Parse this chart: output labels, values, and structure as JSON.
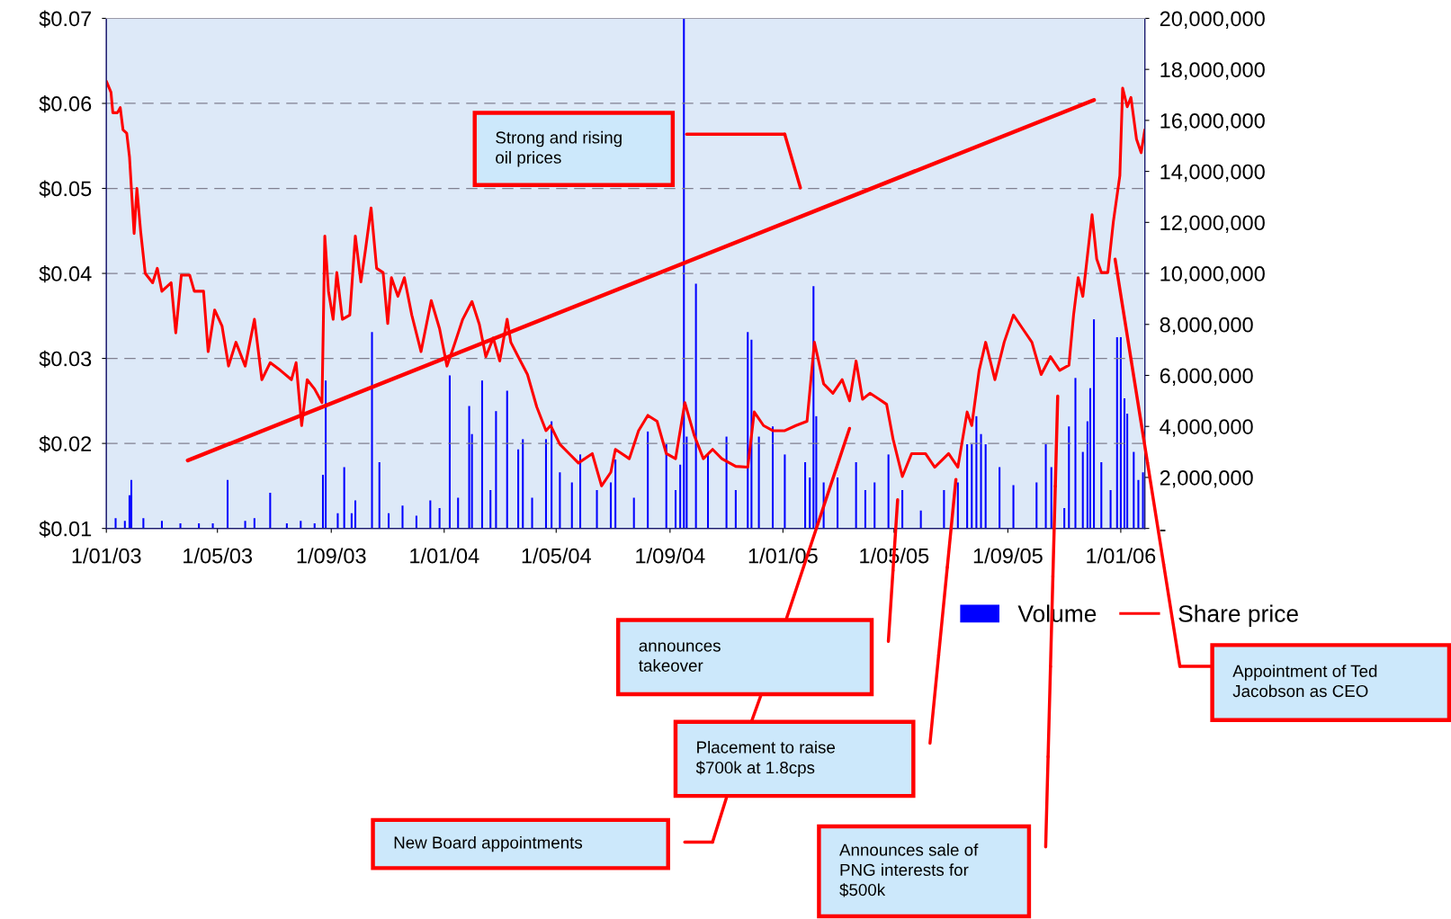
{
  "chart_data": {
    "type": "line",
    "series": [
      {
        "name": "Volume",
        "type": "bar",
        "axis": "y2",
        "color": "#0000ff",
        "x": [
          "2003-01-11",
          "2003-01-21",
          "2003-01-26",
          "2003-01-28",
          "2003-02-10",
          "2003-03-02",
          "2003-03-22",
          "2003-04-11",
          "2003-04-26",
          "2003-05-12",
          "2003-05-31",
          "2003-06-10",
          "2003-06-27",
          "2003-07-15",
          "2003-07-30",
          "2003-08-14",
          "2003-08-23",
          "2003-08-26",
          "2003-09-08",
          "2003-09-15",
          "2003-09-23",
          "2003-09-27",
          "2003-10-15",
          "2003-10-23",
          "2003-11-02",
          "2003-11-17",
          "2003-12-02",
          "2003-12-17",
          "2003-12-27",
          "2004-01-07",
          "2004-01-16",
          "2004-01-28",
          "2004-01-31",
          "2004-02-11",
          "2004-02-20",
          "2004-02-26",
          "2004-03-09",
          "2004-03-21",
          "2004-03-26",
          "2004-04-05",
          "2004-04-20",
          "2004-04-26",
          "2004-05-05",
          "2004-05-18",
          "2004-05-27",
          "2004-06-14",
          "2004-06-29",
          "2004-07-04",
          "2004-07-24",
          "2004-08-08",
          "2004-08-28",
          "2004-09-07",
          "2004-09-12",
          "2004-09-16",
          "2004-09-19",
          "2004-09-29",
          "2004-10-12",
          "2004-11-01",
          "2004-11-11",
          "2004-11-24",
          "2004-11-28",
          "2004-12-06",
          "2004-12-21",
          "2005-01-03",
          "2005-01-25",
          "2005-01-30",
          "2005-02-03",
          "2005-02-06",
          "2005-02-14",
          "2005-03-01",
          "2005-03-21",
          "2005-03-31",
          "2005-04-10",
          "2005-04-25",
          "2005-05-10",
          "2005-05-30",
          "2005-06-24",
          "2005-07-09",
          "2005-07-19",
          "2005-07-24",
          "2005-07-29",
          "2005-08-03",
          "2005-08-08",
          "2005-08-23",
          "2005-09-07",
          "2005-10-02",
          "2005-10-12",
          "2005-10-18",
          "2005-11-01",
          "2005-11-06",
          "2005-11-13",
          "2005-11-21",
          "2005-11-26",
          "2005-11-29",
          "2005-12-03",
          "2005-12-11",
          "2005-12-21",
          "2005-12-28",
          "2006-01-01",
          "2006-01-05",
          "2006-01-08",
          "2006-01-15",
          "2006-01-20",
          "2006-01-25"
        ],
        "values": [
          400000,
          300000,
          1300000,
          1900000,
          400000,
          300000,
          200000,
          200000,
          200000,
          1900000,
          300000,
          400000,
          1400000,
          200000,
          300000,
          200000,
          2100000,
          5800000,
          600000,
          2400000,
          600000,
          1100000,
          7700000,
          2600000,
          600000,
          900000,
          500000,
          1100000,
          800000,
          6000000,
          1200000,
          4800000,
          3700000,
          5800000,
          1500000,
          4600000,
          5400000,
          3100000,
          3500000,
          1200000,
          3500000,
          4200000,
          2200000,
          1800000,
          2900000,
          1500000,
          1800000,
          2700000,
          1200000,
          3800000,
          3300000,
          1500000,
          2500000,
          20000000,
          3600000,
          9600000,
          2900000,
          3600000,
          1500000,
          7700000,
          7400000,
          3600000,
          4000000,
          2900000,
          2600000,
          2000000,
          9500000,
          4400000,
          1800000,
          2000000,
          2600000,
          1500000,
          1800000,
          2900000,
          1500000,
          700000,
          1500000,
          1800000,
          3300000,
          3300000,
          4400000,
          3700000,
          3300000,
          2400000,
          1700000,
          1800000,
          3300000,
          2400000,
          800000,
          4000000,
          5900000,
          3000000,
          4200000,
          5500000,
          8200000,
          2600000,
          1500000,
          7500000,
          7500000,
          5100000,
          4500000,
          3000000,
          1900000,
          2200000
        ]
      },
      {
        "name": "Share price",
        "type": "line",
        "color": "#ff0000",
        "x": [
          "2003-01-01",
          "2003-01-06",
          "2003-01-08",
          "2003-01-13",
          "2003-01-16",
          "2003-01-19",
          "2003-01-23",
          "2003-01-26",
          "2003-01-31",
          "2003-02-03",
          "2003-02-07",
          "2003-02-12",
          "2003-02-20",
          "2003-02-25",
          "2003-03-02",
          "2003-03-12",
          "2003-03-17",
          "2003-03-23",
          "2003-04-01",
          "2003-04-06",
          "2003-04-16",
          "2003-04-21",
          "2003-04-28",
          "2003-05-06",
          "2003-05-13",
          "2003-05-21",
          "2003-05-31",
          "2003-06-10",
          "2003-06-18",
          "2003-06-27",
          "2003-07-08",
          "2003-07-20",
          "2003-07-25",
          "2003-07-31",
          "2003-08-06",
          "2003-08-14",
          "2003-08-22",
          "2003-08-25",
          "2003-08-29",
          "2003-09-03",
          "2003-09-07",
          "2003-09-13",
          "2003-09-21",
          "2003-09-27",
          "2003-10-03",
          "2003-10-08",
          "2003-10-14",
          "2003-10-20",
          "2003-10-27",
          "2003-11-01",
          "2003-11-05",
          "2003-11-12",
          "2003-11-19",
          "2003-11-27",
          "2003-12-07",
          "2003-12-18",
          "2003-12-27",
          "2004-01-04",
          "2004-01-11",
          "2004-01-21",
          "2004-01-31",
          "2004-02-08",
          "2004-02-15",
          "2004-02-23",
          "2004-03-01",
          "2004-03-09",
          "2004-03-13",
          "2004-03-21",
          "2004-03-31",
          "2004-04-10",
          "2004-04-20",
          "2004-04-25",
          "2004-05-05",
          "2004-05-15",
          "2004-05-25",
          "2004-06-09",
          "2004-06-19",
          "2004-06-29",
          "2004-07-04",
          "2004-07-19",
          "2004-07-29",
          "2004-08-08",
          "2004-08-18",
          "2004-08-28",
          "2004-09-07",
          "2004-09-17",
          "2004-09-27",
          "2004-10-07",
          "2004-10-17",
          "2004-10-27",
          "2004-11-11",
          "2004-11-24",
          "2004-12-01",
          "2004-12-11",
          "2004-12-21",
          "2005-01-03",
          "2005-01-15",
          "2005-01-27",
          "2005-02-04",
          "2005-02-14",
          "2005-02-24",
          "2005-03-06",
          "2005-03-14",
          "2005-03-21",
          "2005-03-28",
          "2005-04-05",
          "2005-04-15",
          "2005-04-23",
          "2005-04-30",
          "2005-05-10",
          "2005-05-20",
          "2005-06-04",
          "2005-06-14",
          "2005-06-29",
          "2005-07-09",
          "2005-07-19",
          "2005-07-24",
          "2005-08-01",
          "2005-08-08",
          "2005-08-18",
          "2005-08-28",
          "2005-09-07",
          "2005-09-17",
          "2005-09-27",
          "2005-10-07",
          "2005-10-17",
          "2005-10-27",
          "2005-11-06",
          "2005-11-11",
          "2005-11-16",
          "2005-11-21",
          "2005-12-01",
          "2005-12-06",
          "2005-12-11",
          "2005-12-18",
          "2005-12-24",
          "2005-12-31",
          "2006-01-03",
          "2006-01-08",
          "2006-01-12",
          "2006-01-18",
          "2006-01-23",
          "2006-01-27"
        ],
        "values": [
          0.0626,
          0.0613,
          0.0589,
          0.0589,
          0.0595,
          0.0569,
          0.0565,
          0.0537,
          0.0447,
          0.05,
          0.045,
          0.04,
          0.0389,
          0.0406,
          0.0379,
          0.0389,
          0.033,
          0.0398,
          0.0398,
          0.0379,
          0.0379,
          0.0308,
          0.0357,
          0.0338,
          0.0291,
          0.0319,
          0.0291,
          0.0346,
          0.0275,
          0.0295,
          0.0286,
          0.0275,
          0.0295,
          0.0221,
          0.0275,
          0.0264,
          0.0248,
          0.0444,
          0.0379,
          0.0346,
          0.0401,
          0.0346,
          0.0351,
          0.0444,
          0.039,
          0.0428,
          0.0477,
          0.0406,
          0.0401,
          0.0341,
          0.0395,
          0.0373,
          0.0395,
          0.0351,
          0.0308,
          0.0368,
          0.0335,
          0.0291,
          0.0313,
          0.0346,
          0.0367,
          0.034,
          0.0302,
          0.0324,
          0.0297,
          0.0346,
          0.0319,
          0.0302,
          0.0281,
          0.0243,
          0.0215,
          0.0221,
          0.0199,
          0.0188,
          0.0177,
          0.0188,
          0.015,
          0.0166,
          0.0193,
          0.0182,
          0.0215,
          0.0233,
          0.0226,
          0.0188,
          0.0182,
          0.0248,
          0.021,
          0.0182,
          0.0193,
          0.0182,
          0.0173,
          0.0172,
          0.0237,
          0.0221,
          0.0215,
          0.0215,
          0.0221,
          0.0226,
          0.0319,
          0.027,
          0.0259,
          0.0275,
          0.025,
          0.0297,
          0.0252,
          0.0259,
          0.0252,
          0.0246,
          0.0205,
          0.0161,
          0.0188,
          0.0188,
          0.0172,
          0.0188,
          0.0172,
          0.0237,
          0.0221,
          0.0286,
          0.0319,
          0.0275,
          0.0319,
          0.0351,
          0.0335,
          0.0319,
          0.0281,
          0.0302,
          0.0286,
          0.0292,
          0.0351,
          0.0395,
          0.0373,
          0.0469,
          0.0417,
          0.0401,
          0.0401,
          0.0461,
          0.0515,
          0.0618,
          0.0596,
          0.0607,
          0.0558,
          0.0542,
          0.0569
        ]
      },
      {
        "color": "#ff0000",
        "x": [
          "2003-03-30",
          "2005-12-03"
        ],
        "values": [
          0.018,
          0.0604
        ]
      }
    ],
    "xlim": [
      "2003-01-01",
      "2006-01-27"
    ],
    "xticks": [
      {
        "value": "2003-01-01",
        "label": "1/01/03"
      },
      {
        "value": "2003-05-01",
        "label": "1/05/03"
      },
      {
        "value": "2003-09-01",
        "label": "1/09/03"
      },
      {
        "value": "2004-01-01",
        "label": "1/01/04"
      },
      {
        "value": "2004-05-01",
        "label": "1/05/04"
      },
      {
        "value": "2004-09-01",
        "label": "1/09/04"
      },
      {
        "value": "2005-01-01",
        "label": "1/01/05"
      },
      {
        "value": "2005-05-01",
        "label": "1/05/05"
      },
      {
        "value": "2005-09-01",
        "label": "1/09/05"
      },
      {
        "value": "2006-01-01",
        "label": "1/01/06"
      }
    ],
    "ylim": [
      0.01,
      0.07
    ],
    "yticks": [
      {
        "value": 0.01,
        "label": "$0.01"
      },
      {
        "value": 0.02,
        "label": "$0.02"
      },
      {
        "value": 0.03,
        "label": "$0.03"
      },
      {
        "value": 0.04,
        "label": "$0.04"
      },
      {
        "value": 0.05,
        "label": "$0.05"
      },
      {
        "value": 0.06,
        "label": "$0.06"
      },
      {
        "value": 0.07,
        "label": "$0.07"
      }
    ],
    "y2lim": [
      0,
      20000000
    ],
    "y2ticks": [
      {
        "value": 0,
        "label": "-"
      },
      {
        "value": 2000000,
        "label": "2,000,000"
      },
      {
        "value": 4000000,
        "label": "4,000,000"
      },
      {
        "value": 6000000,
        "label": "6,000,000"
      },
      {
        "value": 8000000,
        "label": "8,000,000"
      },
      {
        "value": 10000000,
        "label": "10,000,000"
      },
      {
        "value": 12000000,
        "label": "12,000,000"
      },
      {
        "value": 14000000,
        "label": "14,000,000"
      },
      {
        "value": 16000000,
        "label": "16,000,000"
      },
      {
        "value": 18000000,
        "label": "18,000,000"
      },
      {
        "value": 20000000,
        "label": "20,000,000"
      }
    ],
    "grid": "y",
    "legend": "bottom right",
    "annotations": [
      "Strong and rising\noil prices",
      "announces\ntakeover",
      "Placement to raise\n$700k at 1.8cps",
      "New Board appointments",
      "Announces sale of\nPNG interests for\n$500k",
      "Appointment of Ted\nJacobson as CEO"
    ]
  }
}
